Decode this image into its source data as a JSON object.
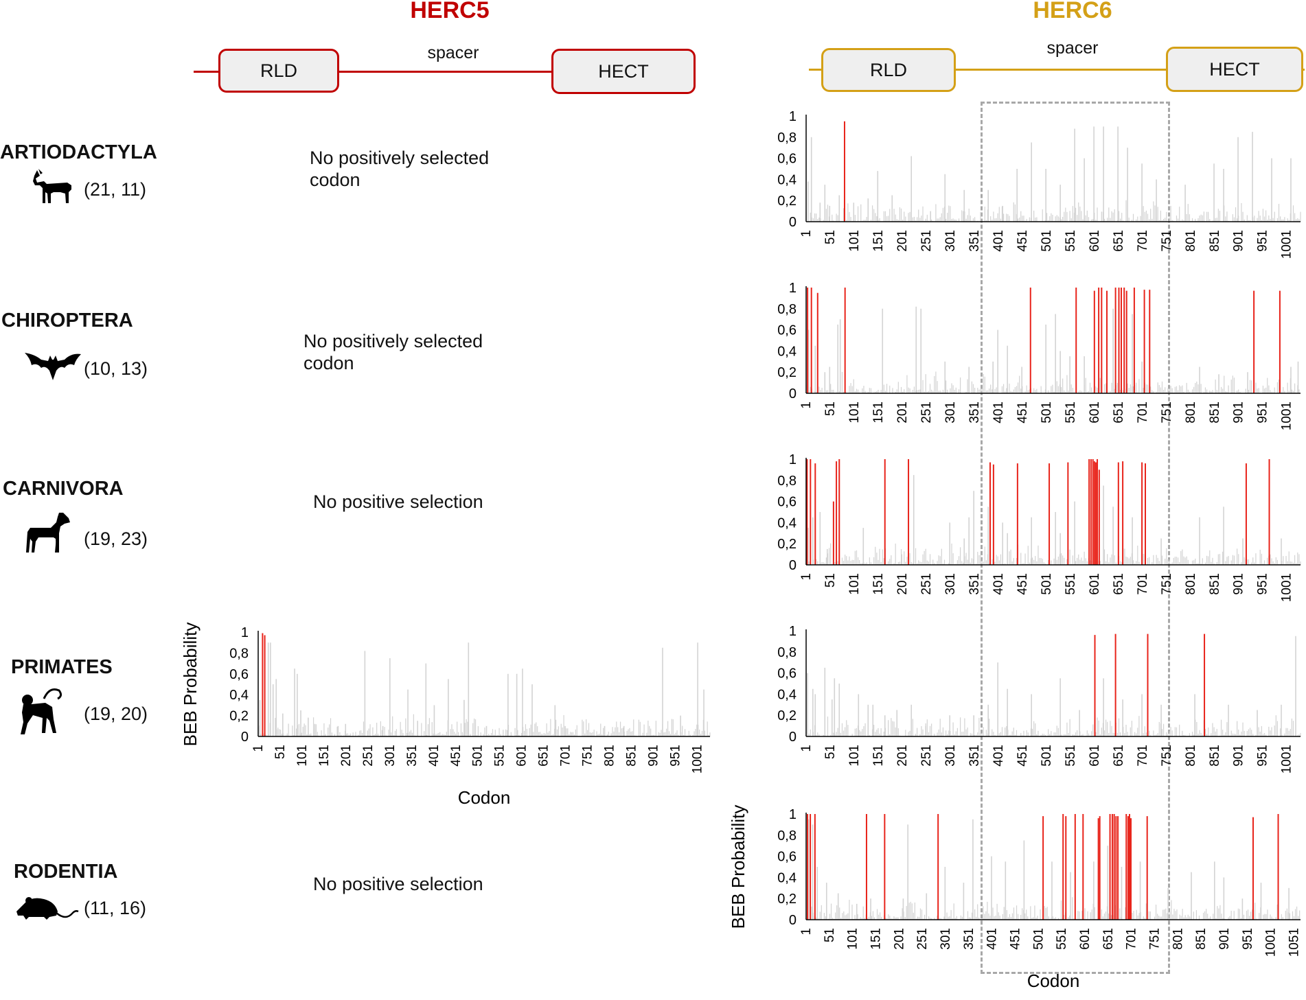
{
  "colors": {
    "herc5": "#c00000",
    "herc6": "#d4a017",
    "positive": "#e8231a",
    "background_bar": "#d3d3d3",
    "dashed_box": "#a8a8a8"
  },
  "herc5": {
    "title": "HERC5",
    "domains": {
      "rld": "RLD",
      "spacer": "spacer",
      "hect": "HECT"
    }
  },
  "herc6": {
    "title": "HERC6",
    "domains": {
      "rld": "RLD",
      "spacer": "spacer",
      "hect": "HECT"
    }
  },
  "orders": [
    {
      "name": "ARTIODACTYLA",
      "counts": "(21, 11)",
      "icon": "goat-icon",
      "herc5_text": "No positively selected codon"
    },
    {
      "name": "CHIROPTERA",
      "counts": "(10, 13)",
      "icon": "bat-icon",
      "herc5_text": "No positively selected codon"
    },
    {
      "name": "CARNIVORA",
      "counts": "(19, 23)",
      "icon": "dog-icon",
      "herc5_text": "No positive selection"
    },
    {
      "name": "PRIMATES",
      "counts": "(19, 20)",
      "icon": "monkey-icon",
      "herc5_text": ""
    },
    {
      "name": "RODENTIA",
      "counts": "(11, 16)",
      "icon": "mouse-icon",
      "herc5_text": "No positive selection"
    }
  ],
  "chart_data": [
    {
      "id": "herc5-primates",
      "type": "bar",
      "gene": "HERC5",
      "order": "PRIMATES",
      "xlabel": "Codon",
      "ylabel": "BEB Probability",
      "ylim": [
        0,
        1
      ],
      "xlim": [
        1,
        1030
      ],
      "yticks": [
        "1",
        "0,8",
        "0,6",
        "0,4",
        "0,2",
        "0"
      ],
      "xticks": [
        "1",
        "51",
        "101",
        "151",
        "201",
        "251",
        "301",
        "351",
        "401",
        "451",
        "501",
        "551",
        "601",
        "651",
        "701",
        "751",
        "801",
        "851",
        "901",
        "951",
        "1001"
      ],
      "positive_sites": [
        [
          11,
          0.99
        ],
        [
          16,
          0.97
        ]
      ],
      "background_peaks": [
        [
          5,
          0.35
        ],
        [
          24,
          0.9
        ],
        [
          29,
          0.9
        ],
        [
          35,
          0.5
        ],
        [
          42,
          0.55
        ],
        [
          57,
          0.22
        ],
        [
          84,
          0.65
        ],
        [
          90,
          0.6
        ],
        [
          98,
          0.25
        ],
        [
          115,
          0.18
        ],
        [
          130,
          0.12
        ],
        [
          183,
          0.1
        ],
        [
          200,
          0.12
        ],
        [
          244,
          0.82
        ],
        [
          285,
          0.1
        ],
        [
          301,
          0.75
        ],
        [
          342,
          0.45
        ],
        [
          364,
          0.15
        ],
        [
          383,
          0.7
        ],
        [
          402,
          0.3
        ],
        [
          434,
          0.55
        ],
        [
          470,
          0.35
        ],
        [
          480,
          0.9
        ],
        [
          521,
          0.1
        ],
        [
          570,
          0.6
        ],
        [
          590,
          0.6
        ],
        [
          603,
          0.65
        ],
        [
          625,
          0.5
        ],
        [
          677,
          0.3
        ],
        [
          700,
          0.1
        ],
        [
          790,
          0.1
        ],
        [
          834,
          0.1
        ],
        [
          922,
          0.85
        ],
        [
          963,
          0.2
        ],
        [
          1002,
          0.9
        ],
        [
          1016,
          0.45
        ]
      ]
    },
    {
      "id": "herc6-artiodactyla",
      "type": "bar",
      "gene": "HERC6",
      "order": "ARTIODACTYLA",
      "ylim": [
        0,
        1
      ],
      "xlim": [
        1,
        1030
      ],
      "yticks": [
        "1",
        "0,8",
        "0,6",
        "0,4",
        "0,2",
        "0"
      ],
      "xticks": [
        "1",
        "51",
        "101",
        "151",
        "201",
        "251",
        "301",
        "351",
        "401",
        "451",
        "501",
        "551",
        "601",
        "651",
        "701",
        "751",
        "801",
        "851",
        "901",
        "951",
        "1001"
      ],
      "positive_sites": [
        [
          81,
          0.95
        ]
      ],
      "background_peaks": [
        [
          5,
          0.38
        ],
        [
          12,
          0.8
        ],
        [
          30,
          0.18
        ],
        [
          40,
          0.35
        ],
        [
          50,
          0.15
        ],
        [
          70,
          0.25
        ],
        [
          100,
          0.18
        ],
        [
          130,
          0.22
        ],
        [
          150,
          0.48
        ],
        [
          180,
          0.25
        ],
        [
          220,
          0.62
        ],
        [
          260,
          0.1
        ],
        [
          290,
          0.45
        ],
        [
          330,
          0.3
        ],
        [
          380,
          0.3
        ],
        [
          410,
          0.15
        ],
        [
          440,
          0.5
        ],
        [
          470,
          0.75
        ],
        [
          500,
          0.5
        ],
        [
          530,
          0.35
        ],
        [
          560,
          0.88
        ],
        [
          580,
          0.6
        ],
        [
          600,
          0.9
        ],
        [
          620,
          0.9
        ],
        [
          650,
          0.9
        ],
        [
          670,
          0.7
        ],
        [
          700,
          0.55
        ],
        [
          730,
          0.4
        ],
        [
          790,
          0.35
        ],
        [
          850,
          0.55
        ],
        [
          870,
          0.5
        ],
        [
          900,
          0.8
        ],
        [
          930,
          0.85
        ],
        [
          970,
          0.6
        ],
        [
          1010,
          0.6
        ]
      ]
    },
    {
      "id": "herc6-chiroptera",
      "type": "bar",
      "gene": "HERC6",
      "order": "CHIROPTERA",
      "ylim": [
        0,
        1
      ],
      "xlim": [
        1,
        1030
      ],
      "yticks": [
        "1",
        "0,8",
        "0,6",
        "0,4",
        "0,2",
        "0"
      ],
      "xticks": [
        "1",
        "51",
        "101",
        "151",
        "201",
        "251",
        "301",
        "351",
        "401",
        "451",
        "501",
        "551",
        "601",
        "651",
        "701",
        "751",
        "801",
        "851",
        "901",
        "951",
        "1001"
      ],
      "positive_sites": [
        [
          4,
          1.0
        ],
        [
          12,
          1.0
        ],
        [
          25,
          0.95
        ],
        [
          82,
          1.0
        ],
        [
          468,
          1.0
        ],
        [
          563,
          1.0
        ],
        [
          601,
          0.97
        ],
        [
          610,
          1.0
        ],
        [
          616,
          1.0
        ],
        [
          627,
          0.97
        ],
        [
          645,
          1.0
        ],
        [
          652,
          1.0
        ],
        [
          657,
          1.0
        ],
        [
          663,
          1.0
        ],
        [
          668,
          0.97
        ],
        [
          684,
          1.0
        ],
        [
          705,
          0.98
        ],
        [
          716,
          0.98
        ],
        [
          933,
          0.97
        ],
        [
          987,
          0.97
        ]
      ],
      "background_peaks": [
        [
          6,
          0.6
        ],
        [
          20,
          0.45
        ],
        [
          40,
          0.2
        ],
        [
          50,
          0.25
        ],
        [
          67,
          0.65
        ],
        [
          72,
          0.7
        ],
        [
          160,
          0.8
        ],
        [
          230,
          0.82
        ],
        [
          240,
          0.8
        ],
        [
          290,
          0.3
        ],
        [
          340,
          0.25
        ],
        [
          390,
          0.3
        ],
        [
          400,
          0.6
        ],
        [
          420,
          0.45
        ],
        [
          450,
          0.25
        ],
        [
          500,
          0.65
        ],
        [
          520,
          0.75
        ],
        [
          530,
          0.4
        ],
        [
          550,
          0.35
        ],
        [
          580,
          0.35
        ],
        [
          640,
          0.8
        ],
        [
          680,
          0.75
        ],
        [
          700,
          0.3
        ],
        [
          820,
          0.25
        ],
        [
          860,
          0.18
        ],
        [
          920,
          0.2
        ],
        [
          1010,
          0.25
        ],
        [
          1025,
          0.3
        ]
      ]
    },
    {
      "id": "herc6-carnivora",
      "type": "bar",
      "gene": "HERC6",
      "order": "CARNIVORA",
      "ylim": [
        0,
        1
      ],
      "xlim": [
        1,
        1030
      ],
      "yticks": [
        "1",
        "0,8",
        "0,6",
        "0,4",
        "0,2",
        "0"
      ],
      "xticks": [
        "1",
        "51",
        "101",
        "151",
        "201",
        "251",
        "301",
        "351",
        "401",
        "451",
        "501",
        "551",
        "601",
        "651",
        "701",
        "751",
        "801",
        "851",
        "901",
        "951",
        "1001"
      ],
      "positive_sites": [
        [
          3,
          1.0
        ],
        [
          10,
          1.0
        ],
        [
          20,
          0.96
        ],
        [
          58,
          0.6
        ],
        [
          64,
          0.98
        ],
        [
          70,
          1.0
        ],
        [
          165,
          1.0
        ],
        [
          214,
          1.0
        ],
        [
          384,
          0.97
        ],
        [
          391,
          0.95
        ],
        [
          441,
          0.96
        ],
        [
          507,
          0.96
        ],
        [
          546,
          0.97
        ],
        [
          590,
          1.0
        ],
        [
          594,
          1.0
        ],
        [
          598,
          1.0
        ],
        [
          601,
          0.98
        ],
        [
          604,
          0.97
        ],
        [
          607,
          1.0
        ],
        [
          611,
          0.9
        ],
        [
          651,
          0.97
        ],
        [
          660,
          0.98
        ],
        [
          700,
          0.97
        ],
        [
          707,
          0.96
        ],
        [
          917,
          0.96
        ],
        [
          965,
          1.0
        ]
      ],
      "background_peaks": [
        [
          5,
          0.35
        ],
        [
          15,
          0.45
        ],
        [
          30,
          0.5
        ],
        [
          45,
          0.15
        ],
        [
          120,
          0.35
        ],
        [
          200,
          0.1
        ],
        [
          225,
          0.85
        ],
        [
          300,
          0.4
        ],
        [
          330,
          0.25
        ],
        [
          340,
          0.45
        ],
        [
          350,
          0.7
        ],
        [
          380,
          0.55
        ],
        [
          410,
          0.4
        ],
        [
          420,
          0.3
        ],
        [
          470,
          0.45
        ],
        [
          520,
          0.5
        ],
        [
          530,
          0.3
        ],
        [
          560,
          0.6
        ],
        [
          620,
          0.75
        ],
        [
          640,
          0.55
        ],
        [
          680,
          0.45
        ],
        [
          740,
          0.25
        ],
        [
          820,
          0.45
        ],
        [
          870,
          0.55
        ],
        [
          910,
          0.25
        ],
        [
          990,
          0.25
        ]
      ]
    },
    {
      "id": "herc6-primates",
      "type": "bar",
      "gene": "HERC6",
      "order": "PRIMATES",
      "ylim": [
        0,
        1
      ],
      "xlim": [
        1,
        1030
      ],
      "yticks": [
        "1",
        "0,8",
        "0,6",
        "0,4",
        "0,2",
        "0"
      ],
      "xticks": [
        "1",
        "51",
        "101",
        "151",
        "201",
        "251",
        "301",
        "351",
        "401",
        "451",
        "501",
        "551",
        "601",
        "651",
        "701",
        "751",
        "801",
        "851",
        "901",
        "951",
        "1001"
      ],
      "positive_sites": [
        [
          602,
          0.96
        ],
        [
          645,
          0.97
        ],
        [
          712,
          0.97
        ],
        [
          830,
          0.97
        ]
      ],
      "background_peaks": [
        [
          4,
          0.6
        ],
        [
          15,
          0.45
        ],
        [
          20,
          0.4
        ],
        [
          40,
          0.65
        ],
        [
          55,
          0.35
        ],
        [
          60,
          0.55
        ],
        [
          70,
          0.5
        ],
        [
          110,
          0.4
        ],
        [
          130,
          0.3
        ],
        [
          140,
          0.3
        ],
        [
          165,
          0.2
        ],
        [
          190,
          0.25
        ],
        [
          220,
          0.3
        ],
        [
          250,
          0.1
        ],
        [
          300,
          0.2
        ],
        [
          350,
          0.2
        ],
        [
          380,
          0.3
        ],
        [
          400,
          0.7
        ],
        [
          420,
          0.45
        ],
        [
          470,
          0.4
        ],
        [
          530,
          0.55
        ],
        [
          570,
          0.25
        ],
        [
          620,
          0.55
        ],
        [
          660,
          0.35
        ],
        [
          700,
          0.4
        ],
        [
          740,
          0.3
        ],
        [
          810,
          0.4
        ],
        [
          880,
          0.3
        ],
        [
          940,
          0.25
        ],
        [
          990,
          0.3
        ],
        [
          1020,
          0.95
        ]
      ]
    },
    {
      "id": "herc6-rodentia",
      "type": "bar",
      "gene": "HERC6",
      "order": "RODENTIA",
      "xlabel": "Codon",
      "ylabel": "BEB Probability",
      "ylim": [
        0,
        1
      ],
      "xlim": [
        1,
        1065
      ],
      "yticks": [
        "1",
        "0,8",
        "0,6",
        "0,4",
        "0,2",
        "0"
      ],
      "xticks": [
        "1",
        "51",
        "101",
        "151",
        "201",
        "251",
        "301",
        "351",
        "401",
        "451",
        "501",
        "551",
        "601",
        "651",
        "701",
        "751",
        "801",
        "851",
        "901",
        "951",
        "1001",
        "1051"
      ],
      "positive_sites": [
        [
          4,
          1.0
        ],
        [
          10,
          1.0
        ],
        [
          20,
          1.0
        ],
        [
          131,
          1.0
        ],
        [
          170,
          1.0
        ],
        [
          285,
          1.0
        ],
        [
          511,
          0.98
        ],
        [
          554,
          1.0
        ],
        [
          560,
          0.98
        ],
        [
          580,
          1.0
        ],
        [
          597,
          1.0
        ],
        [
          630,
          0.96
        ],
        [
          633,
          0.98
        ],
        [
          655,
          1.0
        ],
        [
          660,
          1.0
        ],
        [
          664,
          1.0
        ],
        [
          668,
          0.98
        ],
        [
          672,
          0.98
        ],
        [
          690,
          1.0
        ],
        [
          694,
          0.98
        ],
        [
          697,
          1.0
        ],
        [
          700,
          0.96
        ],
        [
          735,
          0.98
        ],
        [
          963,
          0.97
        ],
        [
          1017,
          1.0
        ]
      ],
      "background_peaks": [
        [
          6,
          0.95
        ],
        [
          15,
          0.9
        ],
        [
          25,
          0.5
        ],
        [
          45,
          0.35
        ],
        [
          70,
          0.25
        ],
        [
          110,
          0.15
        ],
        [
          140,
          0.2
        ],
        [
          210,
          0.2
        ],
        [
          220,
          0.9
        ],
        [
          260,
          0.25
        ],
        [
          300,
          0.5
        ],
        [
          340,
          0.35
        ],
        [
          360,
          0.95
        ],
        [
          400,
          0.6
        ],
        [
          430,
          0.55
        ],
        [
          470,
          0.75
        ],
        [
          530,
          0.55
        ],
        [
          570,
          0.45
        ],
        [
          620,
          0.55
        ],
        [
          650,
          0.7
        ],
        [
          680,
          0.5
        ],
        [
          720,
          0.55
        ],
        [
          780,
          0.3
        ],
        [
          830,
          0.45
        ],
        [
          880,
          0.55
        ],
        [
          900,
          0.4
        ],
        [
          940,
          0.2
        ],
        [
          980,
          0.35
        ],
        [
          1040,
          0.3
        ]
      ]
    }
  ]
}
